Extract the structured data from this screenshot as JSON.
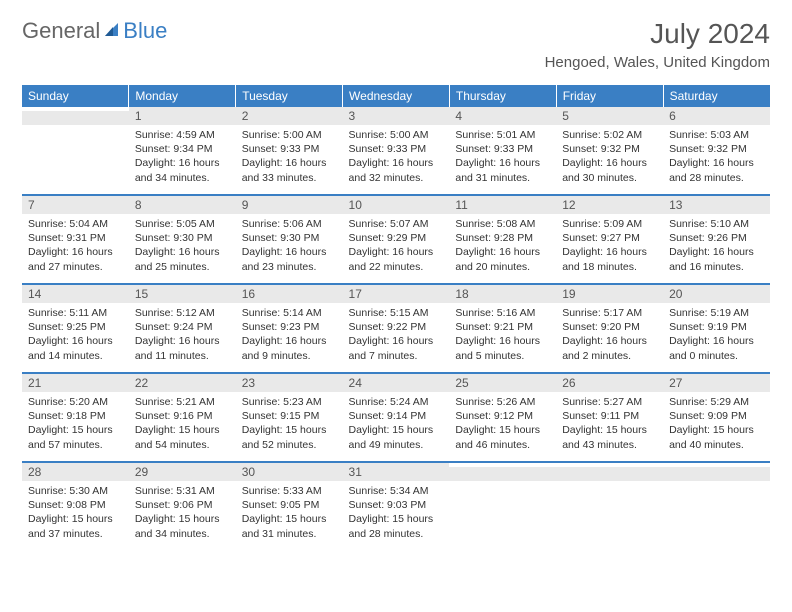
{
  "logo": {
    "general": "General",
    "blue": "Blue"
  },
  "title": "July 2024",
  "location": "Hengoed, Wales, United Kingdom",
  "colors": {
    "header_bg": "#3a7fc4",
    "header_text": "#ffffff",
    "daynum_bg": "#e9e9e9",
    "border": "#3a7fc4",
    "body_text": "#333333",
    "title_text": "#555555"
  },
  "weekdays": [
    "Sunday",
    "Monday",
    "Tuesday",
    "Wednesday",
    "Thursday",
    "Friday",
    "Saturday"
  ],
  "weeks": [
    [
      null,
      {
        "day": 1,
        "sunrise": "4:59 AM",
        "sunset": "9:34 PM",
        "daylight": "16 hours and 34 minutes."
      },
      {
        "day": 2,
        "sunrise": "5:00 AM",
        "sunset": "9:33 PM",
        "daylight": "16 hours and 33 minutes."
      },
      {
        "day": 3,
        "sunrise": "5:00 AM",
        "sunset": "9:33 PM",
        "daylight": "16 hours and 32 minutes."
      },
      {
        "day": 4,
        "sunrise": "5:01 AM",
        "sunset": "9:33 PM",
        "daylight": "16 hours and 31 minutes."
      },
      {
        "day": 5,
        "sunrise": "5:02 AM",
        "sunset": "9:32 PM",
        "daylight": "16 hours and 30 minutes."
      },
      {
        "day": 6,
        "sunrise": "5:03 AM",
        "sunset": "9:32 PM",
        "daylight": "16 hours and 28 minutes."
      }
    ],
    [
      {
        "day": 7,
        "sunrise": "5:04 AM",
        "sunset": "9:31 PM",
        "daylight": "16 hours and 27 minutes."
      },
      {
        "day": 8,
        "sunrise": "5:05 AM",
        "sunset": "9:30 PM",
        "daylight": "16 hours and 25 minutes."
      },
      {
        "day": 9,
        "sunrise": "5:06 AM",
        "sunset": "9:30 PM",
        "daylight": "16 hours and 23 minutes."
      },
      {
        "day": 10,
        "sunrise": "5:07 AM",
        "sunset": "9:29 PM",
        "daylight": "16 hours and 22 minutes."
      },
      {
        "day": 11,
        "sunrise": "5:08 AM",
        "sunset": "9:28 PM",
        "daylight": "16 hours and 20 minutes."
      },
      {
        "day": 12,
        "sunrise": "5:09 AM",
        "sunset": "9:27 PM",
        "daylight": "16 hours and 18 minutes."
      },
      {
        "day": 13,
        "sunrise": "5:10 AM",
        "sunset": "9:26 PM",
        "daylight": "16 hours and 16 minutes."
      }
    ],
    [
      {
        "day": 14,
        "sunrise": "5:11 AM",
        "sunset": "9:25 PM",
        "daylight": "16 hours and 14 minutes."
      },
      {
        "day": 15,
        "sunrise": "5:12 AM",
        "sunset": "9:24 PM",
        "daylight": "16 hours and 11 minutes."
      },
      {
        "day": 16,
        "sunrise": "5:14 AM",
        "sunset": "9:23 PM",
        "daylight": "16 hours and 9 minutes."
      },
      {
        "day": 17,
        "sunrise": "5:15 AM",
        "sunset": "9:22 PM",
        "daylight": "16 hours and 7 minutes."
      },
      {
        "day": 18,
        "sunrise": "5:16 AM",
        "sunset": "9:21 PM",
        "daylight": "16 hours and 5 minutes."
      },
      {
        "day": 19,
        "sunrise": "5:17 AM",
        "sunset": "9:20 PM",
        "daylight": "16 hours and 2 minutes."
      },
      {
        "day": 20,
        "sunrise": "5:19 AM",
        "sunset": "9:19 PM",
        "daylight": "16 hours and 0 minutes."
      }
    ],
    [
      {
        "day": 21,
        "sunrise": "5:20 AM",
        "sunset": "9:18 PM",
        "daylight": "15 hours and 57 minutes."
      },
      {
        "day": 22,
        "sunrise": "5:21 AM",
        "sunset": "9:16 PM",
        "daylight": "15 hours and 54 minutes."
      },
      {
        "day": 23,
        "sunrise": "5:23 AM",
        "sunset": "9:15 PM",
        "daylight": "15 hours and 52 minutes."
      },
      {
        "day": 24,
        "sunrise": "5:24 AM",
        "sunset": "9:14 PM",
        "daylight": "15 hours and 49 minutes."
      },
      {
        "day": 25,
        "sunrise": "5:26 AM",
        "sunset": "9:12 PM",
        "daylight": "15 hours and 46 minutes."
      },
      {
        "day": 26,
        "sunrise": "5:27 AM",
        "sunset": "9:11 PM",
        "daylight": "15 hours and 43 minutes."
      },
      {
        "day": 27,
        "sunrise": "5:29 AM",
        "sunset": "9:09 PM",
        "daylight": "15 hours and 40 minutes."
      }
    ],
    [
      {
        "day": 28,
        "sunrise": "5:30 AM",
        "sunset": "9:08 PM",
        "daylight": "15 hours and 37 minutes."
      },
      {
        "day": 29,
        "sunrise": "5:31 AM",
        "sunset": "9:06 PM",
        "daylight": "15 hours and 34 minutes."
      },
      {
        "day": 30,
        "sunrise": "5:33 AM",
        "sunset": "9:05 PM",
        "daylight": "15 hours and 31 minutes."
      },
      {
        "day": 31,
        "sunrise": "5:34 AM",
        "sunset": "9:03 PM",
        "daylight": "15 hours and 28 minutes."
      },
      null,
      null,
      null
    ]
  ],
  "labels": {
    "sunrise": "Sunrise:",
    "sunset": "Sunset:",
    "daylight": "Daylight:"
  }
}
